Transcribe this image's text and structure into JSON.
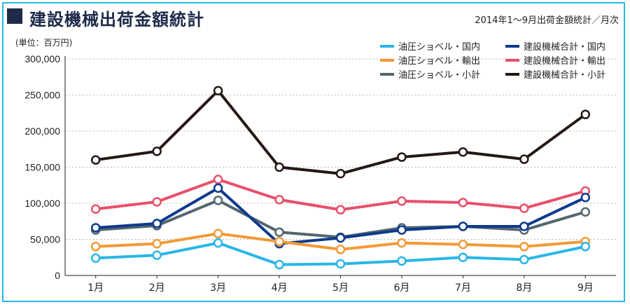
{
  "header": {
    "title": "建設機械出荷金額統計",
    "subtitle": "2014年1～9月出荷金額統計／月次",
    "unit": "(単位：百万円)"
  },
  "chart_data": {
    "type": "line",
    "categories": [
      "1月",
      "2月",
      "3月",
      "4月",
      "5月",
      "6月",
      "7月",
      "8月",
      "9月"
    ],
    "ylim": [
      0,
      300000
    ],
    "yticks": [
      0,
      50000,
      100000,
      150000,
      200000,
      250000,
      300000
    ],
    "ytick_labels": [
      "0",
      "50,000",
      "100,000",
      "150,000",
      "200,000",
      "250,000",
      "300,000"
    ],
    "grid": true,
    "legend_position": "top-right",
    "series": [
      {
        "name": "建設機械合計・小計",
        "color": "#231815",
        "values": [
          160000,
          172000,
          256000,
          150000,
          141000,
          164000,
          171000,
          161000,
          223000
        ]
      },
      {
        "name": "建設機械合計・輸出",
        "color": "#e8506a",
        "values": [
          92000,
          102000,
          133000,
          105000,
          91000,
          103000,
          101000,
          93000,
          117000
        ]
      },
      {
        "name": "油圧ショベル・小計",
        "color": "#546670",
        "values": [
          63000,
          69000,
          104000,
          60000,
          53000,
          66000,
          68000,
          63000,
          88000
        ]
      },
      {
        "name": "建設機械合計・国内",
        "color": "#0d3a8c",
        "values": [
          66000,
          72000,
          121000,
          44000,
          52000,
          63000,
          68000,
          68000,
          108000
        ]
      },
      {
        "name": "油圧ショベル・輸出",
        "color": "#f29a36",
        "values": [
          40000,
          44000,
          58000,
          47000,
          36000,
          45000,
          43000,
          40000,
          47000
        ]
      },
      {
        "name": "油圧ショベル・国内",
        "color": "#29b6e8",
        "values": [
          24000,
          28000,
          45000,
          15000,
          16000,
          20000,
          25000,
          22000,
          40000
        ]
      }
    ],
    "legend": [
      {
        "name": "油圧ショベル・国内",
        "color": "#29b6e8"
      },
      {
        "name": "建設機械合計・国内",
        "color": "#0d3a8c"
      },
      {
        "name": "油圧ショベル・輸出",
        "color": "#f29a36"
      },
      {
        "name": "建設機械合計・輸出",
        "color": "#e8506a"
      },
      {
        "name": "油圧ショベル・小計",
        "color": "#546670"
      },
      {
        "name": "建設機械合計・小計",
        "color": "#231815"
      }
    ]
  }
}
